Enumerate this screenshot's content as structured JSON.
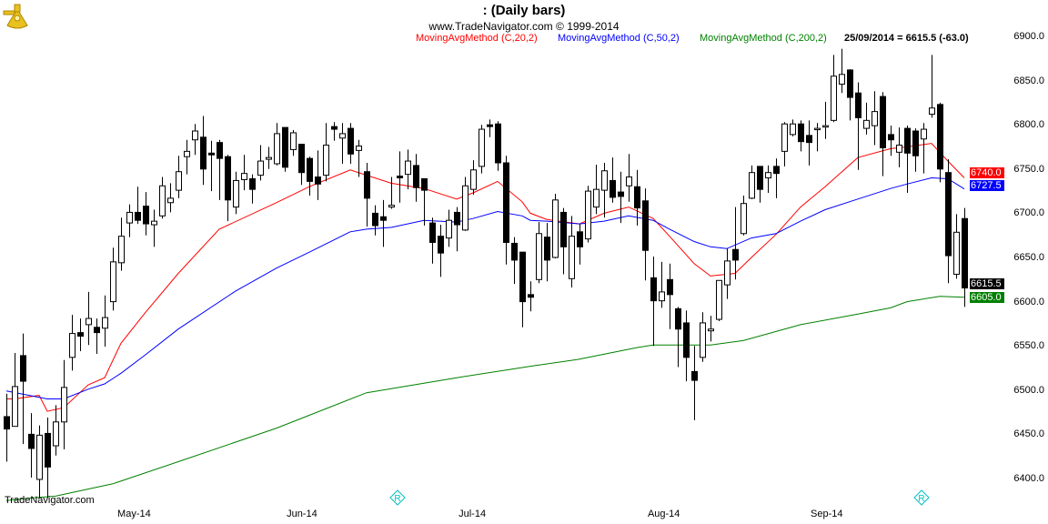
{
  "header": {
    "title": ":   (Daily bars)",
    "subtitle": "www.TradeNavigator.com © 1999-2014"
  },
  "legend": {
    "ma20": "MovingAvgMethod (C,20,2)",
    "ma50": "MovingAvgMethod (C,50,2)",
    "ma200": "MovingAvgMethod (C,200,2)",
    "info": "25/09/2014 = 6615.5 (-63.0)"
  },
  "watermark": "TradeNavigator.com",
  "logo_icon": "sextant-icon",
  "event_icon": "r-diamond-icon",
  "colors": {
    "ma20": "#ff0000",
    "ma50": "#0000ff",
    "ma200": "#008000",
    "candle": "#000000",
    "event": "#00c0c0"
  },
  "value_tags": {
    "ma20": "6740.0",
    "ma50": "6727.5",
    "close": "6615.5",
    "ma200": "6605.0"
  },
  "chart_data": {
    "type": "candlestick",
    "title": ":   (Daily bars)",
    "ylim": [
      6380,
      6910
    ],
    "y_ticks": [
      "6400.0",
      "6450.0",
      "6500.0",
      "6550.0",
      "6600.0",
      "6650.0",
      "6700.0",
      "6750.0",
      "6800.0",
      "6850.0",
      "6900.0"
    ],
    "x_tick_labels": [
      "May-14",
      "Jun-14",
      "Jul-14",
      "Aug-14",
      "Sep-14"
    ],
    "grid": false,
    "last_date": "25/09/2014",
    "candle_fields": [
      "open",
      "high",
      "low",
      "close"
    ],
    "candles": [
      [
        6470,
        6496,
        6419,
        6456
      ],
      [
        6459,
        6542,
        6459,
        6504
      ],
      [
        6539,
        6564,
        6439,
        6510
      ],
      [
        6450,
        6474,
        6401,
        6434
      ],
      [
        6399,
        6460,
        6378,
        6449
      ],
      [
        6451,
        6469,
        6378,
        6413
      ],
      [
        6437,
        6483,
        6426,
        6464
      ],
      [
        6464,
        6534,
        6433,
        6503
      ],
      [
        6537,
        6585,
        6522,
        6564
      ],
      [
        6565,
        6581,
        6544,
        6561
      ],
      [
        6574,
        6611,
        6551,
        6581
      ],
      [
        6571,
        6581,
        6541,
        6565
      ],
      [
        6570,
        6607,
        6549,
        6582
      ],
      [
        6600,
        6661,
        6590,
        6645
      ],
      [
        6644,
        6695,
        6635,
        6674
      ],
      [
        6689,
        6710,
        6673,
        6701
      ],
      [
        6701,
        6730,
        6688,
        6692
      ],
      [
        6708,
        6724,
        6675,
        6688
      ],
      [
        6687,
        6704,
        6662,
        6691
      ],
      [
        6697,
        6741,
        6694,
        6731
      ],
      [
        6712,
        6734,
        6701,
        6717
      ],
      [
        6726,
        6765,
        6717,
        6747
      ],
      [
        6764,
        6783,
        6744,
        6770
      ],
      [
        6783,
        6801,
        6766,
        6793
      ],
      [
        6786,
        6810,
        6732,
        6750
      ],
      [
        6768,
        6782,
        6725,
        6766
      ],
      [
        6780,
        6783,
        6715,
        6762
      ],
      [
        6764,
        6766,
        6691,
        6715
      ],
      [
        6707,
        6747,
        6699,
        6737
      ],
      [
        6738,
        6766,
        6726,
        6745
      ],
      [
        6739,
        6744,
        6711,
        6727
      ],
      [
        6743,
        6777,
        6737,
        6759
      ],
      [
        6761,
        6775,
        6750,
        6763
      ],
      [
        6756,
        6802,
        6754,
        6790
      ],
      [
        6797,
        6797,
        6747,
        6752
      ],
      [
        6772,
        6794,
        6765,
        6791
      ],
      [
        6778,
        6778,
        6732,
        6746
      ],
      [
        6762,
        6764,
        6720,
        6736
      ],
      [
        6741,
        6771,
        6715,
        6733
      ],
      [
        6743,
        6802,
        6736,
        6777
      ],
      [
        6798,
        6803,
        6782,
        6795
      ],
      [
        6785,
        6802,
        6756,
        6790
      ],
      [
        6796,
        6802,
        6756,
        6767
      ],
      [
        6771,
        6783,
        6741,
        6776
      ],
      [
        6747,
        6757,
        6685,
        6717
      ],
      [
        6700,
        6709,
        6675,
        6686
      ],
      [
        6696,
        6715,
        6662,
        6692
      ],
      [
        6707,
        6741,
        6705,
        6709
      ],
      [
        6742,
        6770,
        6712,
        6740
      ],
      [
        6744,
        6772,
        6727,
        6759
      ],
      [
        6754,
        6767,
        6713,
        6729
      ],
      [
        6739,
        6739,
        6686,
        6726
      ],
      [
        6689,
        6695,
        6643,
        6667
      ],
      [
        6674,
        6687,
        6628,
        6655
      ],
      [
        6672,
        6704,
        6662,
        6692
      ],
      [
        6701,
        6707,
        6657,
        6687
      ],
      [
        6681,
        6741,
        6680,
        6731
      ],
      [
        6727,
        6760,
        6721,
        6749
      ],
      [
        6753,
        6800,
        6745,
        6795
      ],
      [
        6800,
        6806,
        6786,
        6798
      ],
      [
        6801,
        6804,
        6748,
        6757
      ],
      [
        6757,
        6765,
        6642,
        6667
      ],
      [
        6666,
        6673,
        6620,
        6647
      ],
      [
        6656,
        6656,
        6571,
        6600
      ],
      [
        6608,
        6623,
        6589,
        6605
      ],
      [
        6625,
        6690,
        6621,
        6677
      ],
      [
        6673,
        6689,
        6623,
        6647
      ],
      [
        6650,
        6722,
        6649,
        6715
      ],
      [
        6701,
        6706,
        6631,
        6662
      ],
      [
        6626,
        6697,
        6616,
        6674
      ],
      [
        6679,
        6688,
        6642,
        6662
      ],
      [
        6671,
        6731,
        6667,
        6725
      ],
      [
        6707,
        6755,
        6699,
        6727
      ],
      [
        6726,
        6757,
        6695,
        6748
      ],
      [
        6737,
        6763,
        6712,
        6718
      ],
      [
        6724,
        6747,
        6689,
        6719
      ],
      [
        6731,
        6767,
        6713,
        6741
      ],
      [
        6730,
        6749,
        6686,
        6706
      ],
      [
        6714,
        6728,
        6624,
        6658
      ],
      [
        6627,
        6651,
        6550,
        6601
      ],
      [
        6601,
        6645,
        6593,
        6611
      ],
      [
        6625,
        6643,
        6569,
        6608
      ],
      [
        6592,
        6594,
        6526,
        6569
      ],
      [
        6576,
        6590,
        6510,
        6537
      ],
      [
        6521,
        6550,
        6466,
        6511
      ],
      [
        6537,
        6588,
        6532,
        6576
      ],
      [
        6567,
        6584,
        6555,
        6569
      ],
      [
        6580,
        6624,
        6578,
        6624
      ],
      [
        6619,
        6660,
        6603,
        6646
      ],
      [
        6659,
        6707,
        6625,
        6647
      ],
      [
        6677,
        6720,
        6675,
        6711
      ],
      [
        6717,
        6754,
        6716,
        6746
      ],
      [
        6753,
        6753,
        6712,
        6727
      ],
      [
        6740,
        6754,
        6723,
        6746
      ],
      [
        6753,
        6762,
        6717,
        6745
      ],
      [
        6770,
        6803,
        6753,
        6801
      ],
      [
        6789,
        6806,
        6787,
        6801
      ],
      [
        6801,
        6805,
        6770,
        6781
      ],
      [
        6788,
        6805,
        6754,
        6780
      ],
      [
        6795,
        6802,
        6770,
        6796
      ],
      [
        6798,
        6826,
        6784,
        6799
      ],
      [
        6805,
        6879,
        6803,
        6855
      ],
      [
        6846,
        6886,
        6836,
        6857
      ],
      [
        6862,
        6863,
        6805,
        6831
      ],
      [
        6836,
        6848,
        6749,
        6808
      ],
      [
        6796,
        6825,
        6789,
        6805
      ],
      [
        6799,
        6838,
        6777,
        6815
      ],
      [
        6832,
        6837,
        6742,
        6774
      ],
      [
        6789,
        6799,
        6765,
        6783
      ],
      [
        6769,
        6797,
        6752,
        6777
      ],
      [
        6796,
        6799,
        6723,
        6768
      ],
      [
        6793,
        6796,
        6747,
        6765
      ],
      [
        6784,
        6802,
        6745,
        6795
      ],
      [
        6812,
        6879,
        6808,
        6819
      ],
      [
        6823,
        6825,
        6735,
        6750
      ],
      [
        6746,
        6761,
        6621,
        6652
      ],
      [
        6631,
        6699,
        6626,
        6678.5
      ],
      [
        6694,
        6706,
        6594,
        6615.5
      ]
    ],
    "series": [
      {
        "name": "MovingAvgMethod (C,20,2)",
        "color": "#ff0000",
        "points": [
          [
            0,
            6490
          ],
          [
            1,
            6490
          ],
          [
            4,
            6494
          ],
          [
            5,
            6476
          ],
          [
            7,
            6480
          ],
          [
            10,
            6506
          ],
          [
            12,
            6514
          ],
          [
            14,
            6553
          ],
          [
            17,
            6588
          ],
          [
            21,
            6632
          ],
          [
            26,
            6682
          ],
          [
            33,
            6712
          ],
          [
            37,
            6730
          ],
          [
            42,
            6749
          ],
          [
            47,
            6734
          ],
          [
            51,
            6728
          ],
          [
            55,
            6716
          ],
          [
            57,
            6723
          ],
          [
            60,
            6736
          ],
          [
            63,
            6713
          ],
          [
            64,
            6700
          ],
          [
            66,
            6693
          ],
          [
            70,
            6688
          ],
          [
            73,
            6700
          ],
          [
            76,
            6707
          ],
          [
            79,
            6694
          ],
          [
            81,
            6674
          ],
          [
            84,
            6643
          ],
          [
            86,
            6629
          ],
          [
            89,
            6632
          ],
          [
            91,
            6650
          ],
          [
            94,
            6676
          ],
          [
            97,
            6707
          ],
          [
            100,
            6730
          ],
          [
            104,
            6763
          ],
          [
            108,
            6773
          ],
          [
            110,
            6775
          ],
          [
            113,
            6779
          ],
          [
            115,
            6759
          ],
          [
            117,
            6740
          ]
        ]
      },
      {
        "name": "MovingAvgMethod (C,50,2)",
        "color": "#0000ff",
        "points": [
          [
            0,
            6499
          ],
          [
            5,
            6490
          ],
          [
            7,
            6490
          ],
          [
            10,
            6501
          ],
          [
            12,
            6507
          ],
          [
            14,
            6519
          ],
          [
            17,
            6540
          ],
          [
            21,
            6569
          ],
          [
            28,
            6612
          ],
          [
            33,
            6638
          ],
          [
            37,
            6656
          ],
          [
            42,
            6679
          ],
          [
            44,
            6682
          ],
          [
            47,
            6684
          ],
          [
            51,
            6692
          ],
          [
            55,
            6690
          ],
          [
            57,
            6694
          ],
          [
            60,
            6702
          ],
          [
            63,
            6697
          ],
          [
            64,
            6692
          ],
          [
            66,
            6691
          ],
          [
            70,
            6688
          ],
          [
            73,
            6691
          ],
          [
            76,
            6697
          ],
          [
            79,
            6692
          ],
          [
            81,
            6682
          ],
          [
            84,
            6668
          ],
          [
            86,
            6662
          ],
          [
            88,
            6660
          ],
          [
            91,
            6672
          ],
          [
            94,
            6677
          ],
          [
            97,
            6691
          ],
          [
            100,
            6704
          ],
          [
            104,
            6716
          ],
          [
            108,
            6728
          ],
          [
            110,
            6733
          ],
          [
            113,
            6740
          ],
          [
            115,
            6739
          ],
          [
            117,
            6727.5
          ]
        ]
      },
      {
        "name": "MovingAvgMethod (C,200,2)",
        "color": "#008000",
        "points": [
          [
            0,
            6375
          ],
          [
            3,
            6378
          ],
          [
            6,
            6380
          ],
          [
            13,
            6394
          ],
          [
            21,
            6419
          ],
          [
            33,
            6457
          ],
          [
            44,
            6497
          ],
          [
            55,
            6514
          ],
          [
            64,
            6527
          ],
          [
            70,
            6535
          ],
          [
            77,
            6548
          ],
          [
            79,
            6551
          ],
          [
            86,
            6551
          ],
          [
            90,
            6556
          ],
          [
            97,
            6574
          ],
          [
            104,
            6586
          ],
          [
            108,
            6593
          ],
          [
            110,
            6600
          ],
          [
            114,
            6606
          ],
          [
            117,
            6605
          ]
        ]
      }
    ]
  }
}
